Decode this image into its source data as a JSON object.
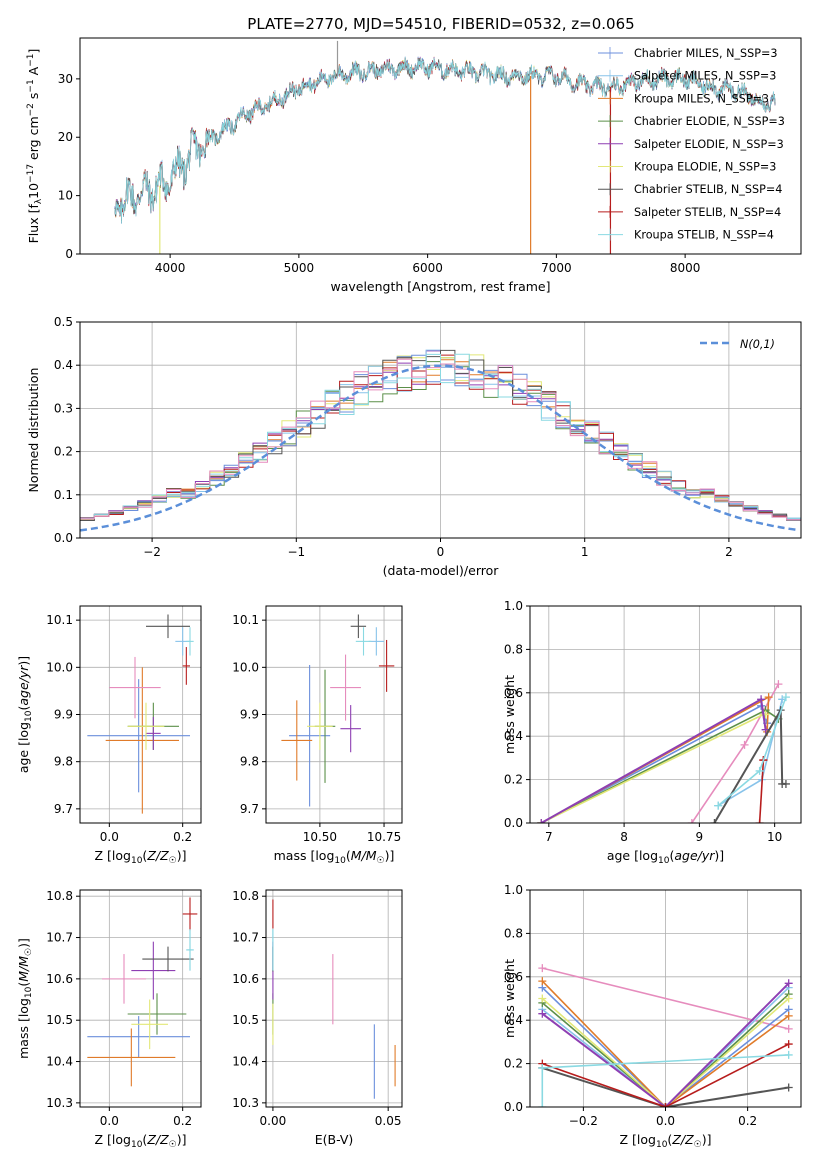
{
  "title": "PLATE=2770, MJD=54510, FIBERID=0532, z=0.065",
  "colors": {
    "series": [
      "#6b8fdc",
      "#88c3ea",
      "#e07b2a",
      "#5b8f49",
      "#8e3fb3",
      "#e2e878",
      "#555555",
      "#b71d1d",
      "#8ad9e2"
    ],
    "pink": "#e68cbd",
    "gaussian": "#5b8fd9"
  },
  "chart_data": [
    {
      "id": "spectrum",
      "type": "line",
      "xlabel": "wavelength [Angstrom, rest frame]",
      "ylabel": "Flux [fλ10^-17 erg cm^-2 s^-1 A^-1]",
      "xlim": [
        3300,
        8900
      ],
      "ylim": [
        0,
        37
      ],
      "xticks": [
        "4000",
        "5000",
        "6000",
        "7000",
        "8000"
      ],
      "yticks": [
        "0",
        "10",
        "20",
        "30"
      ],
      "grid": false,
      "legend_position": "top-right",
      "continuum": [
        [
          3570,
          8
        ],
        [
          3700,
          10
        ],
        [
          3850,
          11
        ],
        [
          3950,
          12
        ],
        [
          4050,
          14
        ],
        [
          4200,
          18
        ],
        [
          4400,
          21
        ],
        [
          4600,
          24
        ],
        [
          4800,
          26
        ],
        [
          5000,
          28.5
        ],
        [
          5200,
          30
        ],
        [
          5400,
          31
        ],
        [
          5600,
          31.5
        ],
        [
          5800,
          32
        ],
        [
          6000,
          32
        ],
        [
          6200,
          31.5
        ],
        [
          6400,
          31
        ],
        [
          6600,
          30.5
        ],
        [
          6800,
          30.5
        ],
        [
          7000,
          30.5
        ],
        [
          7200,
          29
        ],
        [
          7400,
          28.5
        ],
        [
          7600,
          29.5
        ],
        [
          7800,
          30
        ],
        [
          8000,
          30
        ],
        [
          8200,
          28.5
        ],
        [
          8400,
          28
        ],
        [
          8600,
          26
        ],
        [
          8700,
          26
        ]
      ],
      "series": [
        {
          "name": "Chabrier MILES, N_SSP=3"
        },
        {
          "name": "Salpeter MILES, N_SSP=3"
        },
        {
          "name": "Kroupa MILES, N_SSP=3"
        },
        {
          "name": "Chabrier ELODIE, N_SSP=3"
        },
        {
          "name": "Salpeter ELODIE, N_SSP=3"
        },
        {
          "name": "Kroupa ELODIE, N_SSP=3"
        },
        {
          "name": "Chabrier STELIB, N_SSP=4"
        },
        {
          "name": "Salpeter STELIB, N_SSP=4"
        },
        {
          "name": "Kroupa STELIB, N_SSP=4"
        }
      ]
    },
    {
      "id": "residuals",
      "type": "histogram",
      "xlabel": "(data-model)/error",
      "ylabel": "Normed distribution",
      "xlim": [
        -2.5,
        2.5
      ],
      "ylim": [
        0,
        0.5
      ],
      "xticks": [
        "−2",
        "−1",
        "0",
        "1",
        "2"
      ],
      "yticks": [
        "0.0",
        "0.1",
        "0.2",
        "0.3",
        "0.4",
        "0.5"
      ],
      "grid": true,
      "legend_position": "top-right",
      "gaussian_label": "N(0,1)",
      "bin_width": 0.1
    },
    {
      "id": "age_vs_Z",
      "type": "errorbar",
      "xlabel": "Z [log10(Z/Z☉)]",
      "ylabel": "age [log10(age/yr)]",
      "xlim": [
        -0.08,
        0.25
      ],
      "ylim": [
        9.67,
        10.13
      ],
      "xticks": [
        "0.0",
        "0.2"
      ],
      "yticks": [
        "9.7",
        "9.8",
        "9.9",
        "10.0",
        "10.1"
      ],
      "points": [
        {
          "x": 0.08,
          "xerr": 0.14,
          "y": 9.855,
          "yerr": 0.12
        },
        {
          "x": 0.2,
          "xerr": 0.02,
          "y": 10.055,
          "yerr": 0.03
        },
        {
          "x": 0.09,
          "xerr": 0.1,
          "y": 9.845,
          "yerr": 0.155
        },
        {
          "x": 0.12,
          "xerr": 0.07,
          "y": 9.875,
          "yerr": 0.05
        },
        {
          "x": 0.12,
          "xerr": 0.02,
          "y": 9.86,
          "yerr": 0.035
        },
        {
          "x": 0.1,
          "xerr": 0.05,
          "y": 9.875,
          "yerr": 0.05
        },
        {
          "x": 0.16,
          "xerr": 0.06,
          "y": 10.087,
          "yerr": 0.025
        },
        {
          "x": 0.21,
          "xerr": 0.01,
          "y": 10.003,
          "yerr": 0.04
        },
        {
          "x": 0.22,
          "xerr": 0.01,
          "y": 10.055,
          "yerr": 0.03
        },
        {
          "x": 0.07,
          "xerr": 0.07,
          "y": 9.957,
          "yerr": 0.065
        }
      ]
    },
    {
      "id": "age_vs_mass",
      "type": "errorbar",
      "xlabel": "mass [log10(M/M☉)]",
      "ylabel": "",
      "xlim": [
        10.29,
        10.82
      ],
      "ylim": [
        9.67,
        10.13
      ],
      "xticks": [
        "10.50",
        "10.75"
      ],
      "yticks": [
        "9.7",
        "9.8",
        "9.9",
        "10.0",
        "10.1"
      ],
      "points": [
        {
          "x": 10.46,
          "xerr": 0.08,
          "y": 9.855,
          "yerr": 0.15
        },
        {
          "x": 10.72,
          "xerr": 0.03,
          "y": 10.055,
          "yerr": 0.03
        },
        {
          "x": 10.41,
          "xerr": 0.06,
          "y": 9.845,
          "yerr": 0.085
        },
        {
          "x": 10.52,
          "xerr": 0.04,
          "y": 9.875,
          "yerr": 0.12
        },
        {
          "x": 10.62,
          "xerr": 0.04,
          "y": 9.87,
          "yerr": 0.05
        },
        {
          "x": 10.5,
          "xerr": 0.05,
          "y": 9.875,
          "yerr": 0.05
        },
        {
          "x": 10.65,
          "xerr": 0.03,
          "y": 10.087,
          "yerr": 0.025
        },
        {
          "x": 10.76,
          "xerr": 0.03,
          "y": 10.003,
          "yerr": 0.055
        },
        {
          "x": 10.67,
          "xerr": 0.03,
          "y": 10.055,
          "yerr": 0.03
        },
        {
          "x": 10.6,
          "xerr": 0.06,
          "y": 9.957,
          "yerr": 0.07
        }
      ]
    },
    {
      "id": "mass_vs_Z",
      "type": "errorbar",
      "xlabel": "Z [log10(Z/Z☉)]",
      "ylabel": "mass [log10(M/M☉)]",
      "xlim": [
        -0.08,
        0.25
      ],
      "ylim": [
        10.29,
        10.815
      ],
      "xticks": [
        "0.0",
        "0.2"
      ],
      "yticks": [
        "10.3",
        "10.4",
        "10.5",
        "10.6",
        "10.7",
        "10.8"
      ],
      "points": [
        {
          "x": 0.08,
          "xerr": 0.14,
          "y": 10.46,
          "yerr": 0.05
        },
        {
          "x": 0.22,
          "xerr": 0.01,
          "y": 10.67,
          "yerr": 0.05
        },
        {
          "x": 0.06,
          "xerr": 0.12,
          "y": 10.41,
          "yerr": 0.07
        },
        {
          "x": 0.13,
          "xerr": 0.08,
          "y": 10.515,
          "yerr": 0.05
        },
        {
          "x": 0.12,
          "xerr": 0.06,
          "y": 10.62,
          "yerr": 0.07
        },
        {
          "x": 0.11,
          "xerr": 0.05,
          "y": 10.49,
          "yerr": 0.06
        },
        {
          "x": 0.16,
          "xerr": 0.07,
          "y": 10.648,
          "yerr": 0.03
        },
        {
          "x": 0.22,
          "xerr": 0.02,
          "y": 10.757,
          "yerr": 0.04
        },
        {
          "x": 0.22,
          "xerr": 0.01,
          "y": 10.67,
          "yerr": 0.05
        },
        {
          "x": 0.04,
          "xerr": 0.06,
          "y": 10.6,
          "yerr": 0.06
        }
      ]
    },
    {
      "id": "mass_vs_EBV",
      "type": "errorbar",
      "xlabel": "E(B-V)",
      "ylabel": "",
      "xlim": [
        -0.003,
        0.056
      ],
      "ylim": [
        10.29,
        10.815
      ],
      "xticks": [
        "0.00",
        "0.05"
      ],
      "yticks": [
        "10.3",
        "10.4",
        "10.5",
        "10.6",
        "10.7",
        "10.8"
      ],
      "points": [
        {
          "x": 0.044,
          "xerr": 0,
          "y": 10.4,
          "yerr": 0.09
        },
        {
          "x": 0.0,
          "xerr": 0,
          "y": 10.67,
          "yerr": 0.05
        },
        {
          "x": 0.053,
          "xerr": 0,
          "y": 10.39,
          "yerr": 0.05
        },
        {
          "x": 0.0,
          "xerr": 0,
          "y": 10.515,
          "yerr": 0.05
        },
        {
          "x": 0.0,
          "xerr": 0,
          "y": 10.62,
          "yerr": 0.07
        },
        {
          "x": 0.0,
          "xerr": 0,
          "y": 10.49,
          "yerr": 0.05
        },
        {
          "x": 0.0,
          "xerr": 0,
          "y": 10.648,
          "yerr": 0.03
        },
        {
          "x": 0.0,
          "xerr": 0,
          "y": 10.757,
          "yerr": 0.035
        },
        {
          "x": 0.0,
          "xerr": 0,
          "y": 10.67,
          "yerr": 0.05
        },
        {
          "x": 0.026,
          "xerr": 0,
          "y": 10.575,
          "yerr": 0.085
        }
      ]
    },
    {
      "id": "weight_vs_age",
      "type": "line",
      "xlabel": "age [log10(age/yr)]",
      "ylabel": "mass weight",
      "xlim": [
        6.75,
        10.35
      ],
      "ylim": [
        0,
        1.0
      ],
      "xticks": [
        "7",
        "8",
        "9",
        "10"
      ],
      "yticks": [
        "0.0",
        "0.2",
        "0.4",
        "0.6",
        "0.8",
        "1.0"
      ],
      "series": [
        {
          "x": [
            6.9,
            9.82,
            9.9
          ],
          "y": [
            0,
            0.54,
            0.46
          ]
        },
        {
          "x": [
            9.25,
            9.83,
            10.1
          ],
          "y": [
            0.08,
            0.2,
            0.57
          ]
        },
        {
          "x": [
            6.9,
            9.92,
            9.9
          ],
          "y": [
            0,
            0.58,
            0.42
          ]
        },
        {
          "x": [
            6.9,
            9.88,
            10.05
          ],
          "y": [
            0,
            0.52,
            0.48
          ]
        },
        {
          "x": [
            6.9,
            9.82,
            9.88
          ],
          "y": [
            0,
            0.57,
            0.43
          ]
        },
        {
          "x": [
            6.9,
            9.85,
            9.88
          ],
          "y": [
            0,
            0.5,
            0.5
          ]
        },
        {
          "x": [
            9.2,
            10.08,
            10.1,
            10.15
          ],
          "y": [
            0.0,
            0.52,
            0.18,
            0.18
          ]
        },
        {
          "x": [
            9.8,
            9.85,
            9.85
          ],
          "y": [
            0.0,
            0.29,
            0.29
          ]
        },
        {
          "x": [
            9.25,
            9.8,
            10.15
          ],
          "y": [
            0.08,
            0.24,
            0.58
          ]
        },
        {
          "x": [
            8.9,
            9.6,
            10.05
          ],
          "y": [
            0,
            0.36,
            0.64
          ]
        }
      ]
    },
    {
      "id": "weight_vs_Z",
      "type": "line",
      "xlabel": "Z [log10(Z/Z☉)]",
      "ylabel": "mass weight",
      "xlim": [
        -0.33,
        0.33
      ],
      "ylim": [
        0,
        1.0
      ],
      "xticks": [
        "−0.2",
        "0.0",
        "0.2"
      ],
      "yticks": [
        "0.0",
        "0.2",
        "0.4",
        "0.6",
        "0.8",
        "1.0"
      ],
      "series": [
        {
          "x": [
            -0.3,
            0.0,
            0.3
          ],
          "y": [
            0.55,
            0.0,
            0.45
          ]
        },
        {
          "x": [
            -0.3,
            0.0,
            0.3
          ],
          "y": [
            0.45,
            0.0,
            0.55
          ]
        },
        {
          "x": [
            -0.3,
            0.0,
            0.3
          ],
          "y": [
            0.58,
            0.0,
            0.42
          ]
        },
        {
          "x": [
            -0.3,
            0.0,
            0.3
          ],
          "y": [
            0.48,
            0.0,
            0.52
          ]
        },
        {
          "x": [
            -0.3,
            0.0,
            0.3
          ],
          "y": [
            0.43,
            0.0,
            0.57
          ]
        },
        {
          "x": [
            -0.3,
            0.0,
            0.3
          ],
          "y": [
            0.5,
            0.0,
            0.5
          ]
        },
        {
          "x": [
            -0.3,
            0.0,
            0.3
          ],
          "y": [
            0.18,
            0.0,
            0.09
          ]
        },
        {
          "x": [
            -0.3,
            0.0,
            0.3
          ],
          "y": [
            0.2,
            0.0,
            0.29
          ]
        },
        {
          "x": [
            -0.3,
            -0.3,
            0.3
          ],
          "y": [
            0.0,
            0.18,
            0.24
          ]
        },
        {
          "x": [
            -0.3,
            0.3
          ],
          "y": [
            0.64,
            0.36
          ]
        }
      ]
    }
  ]
}
